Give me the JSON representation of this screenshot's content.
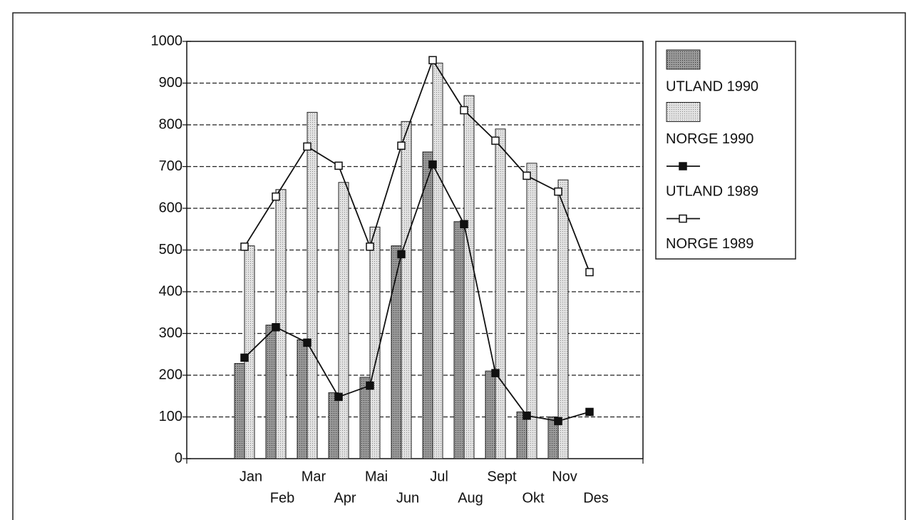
{
  "chart_data": {
    "type": "bar",
    "categories": [
      "Jan",
      "Feb",
      "Mar",
      "Apr",
      "Mai",
      "Jun",
      "Jul",
      "Aug",
      "Sept",
      "Okt",
      "Nov",
      "Des"
    ],
    "series": [
      {
        "name": "UTLAND 1990",
        "type": "bar",
        "color": "#9a9a9a",
        "values": [
          228,
          320,
          285,
          158,
          195,
          510,
          735,
          568,
          210,
          112,
          100,
          null
        ]
      },
      {
        "name": "NORGE 1990",
        "type": "bar",
        "color": "#e2e2e2",
        "values": [
          510,
          645,
          830,
          662,
          555,
          808,
          948,
          870,
          790,
          708,
          668,
          null
        ]
      },
      {
        "name": "UTLAND 1989",
        "type": "line",
        "color": "#111111",
        "marker": "filled",
        "values": [
          242,
          315,
          278,
          148,
          175,
          490,
          705,
          562,
          205,
          103,
          90,
          112
        ]
      },
      {
        "name": "NORGE 1989",
        "type": "line",
        "color": "#111111",
        "marker": "open",
        "values": [
          508,
          628,
          748,
          702,
          508,
          750,
          955,
          835,
          762,
          678,
          640,
          447
        ]
      }
    ],
    "ylim": [
      0,
      1000
    ],
    "yticks": [
      0,
      100,
      200,
      300,
      400,
      500,
      600,
      700,
      800,
      900,
      1000
    ],
    "grid": true,
    "legend": "right"
  }
}
